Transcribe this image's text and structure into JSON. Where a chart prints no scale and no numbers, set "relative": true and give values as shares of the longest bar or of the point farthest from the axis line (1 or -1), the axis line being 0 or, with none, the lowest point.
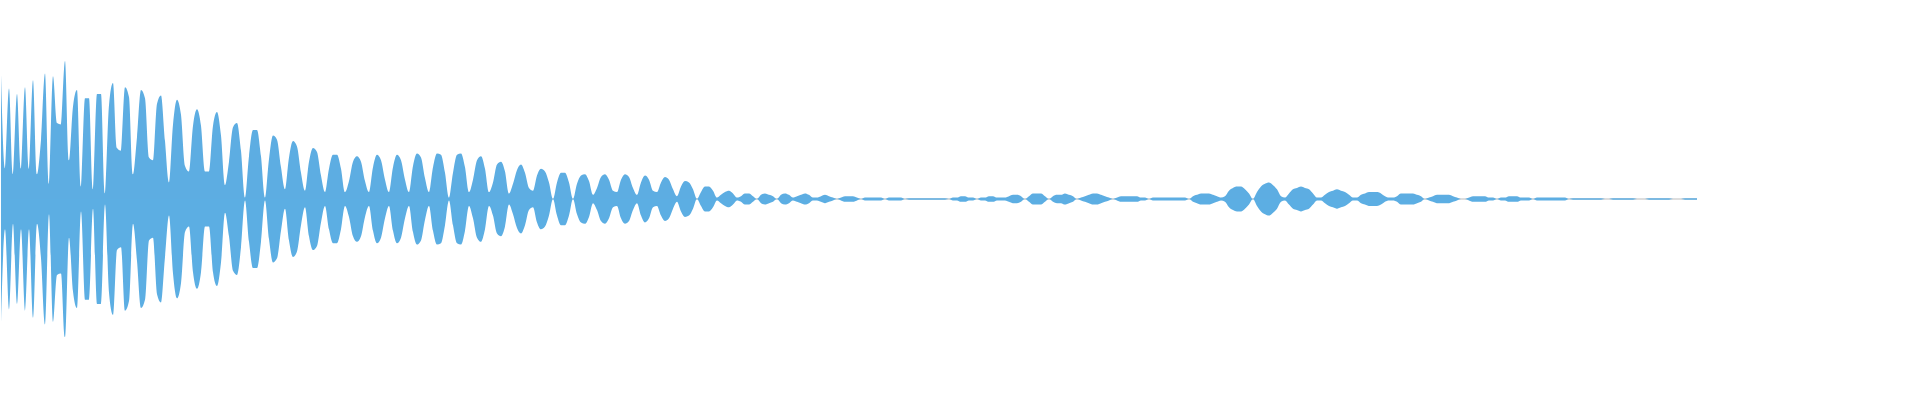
{
  "chart_data": {
    "type": "area",
    "relative": true,
    "categories": [
      null,
      null,
      null,
      null,
      null,
      null,
      null,
      null,
      null,
      null,
      null,
      null,
      null,
      null,
      null,
      null,
      null,
      null,
      null,
      null,
      null,
      null,
      null,
      null,
      null,
      null,
      null,
      null,
      null,
      null,
      null,
      null,
      null,
      null,
      null,
      null,
      null,
      null,
      null,
      null,
      null,
      null,
      null,
      null,
      null,
      null,
      null,
      null,
      null,
      null,
      null,
      null,
      null,
      null,
      null,
      null,
      null,
      null,
      null,
      null,
      null,
      null,
      null,
      null,
      null,
      null,
      null,
      null,
      null,
      null,
      null,
      null,
      null,
      null,
      null,
      null,
      null,
      null,
      null,
      null,
      null,
      null,
      null,
      null,
      null,
      null,
      null,
      null,
      null,
      null,
      null,
      null,
      null,
      null,
      null,
      null,
      null,
      null,
      null,
      null,
      null,
      null,
      null,
      null,
      null,
      null,
      null,
      null,
      null,
      null,
      null,
      null,
      null,
      null,
      null,
      null,
      null,
      null,
      null,
      null,
      null,
      null,
      null,
      null,
      null,
      null,
      null,
      null,
      null,
      null,
      null,
      null,
      null,
      null,
      null,
      null,
      null,
      null,
      null,
      null,
      null,
      null,
      null,
      null,
      null,
      null,
      null,
      null,
      null,
      null,
      null,
      null,
      null,
      null,
      null,
      null,
      null,
      null,
      null,
      null,
      null,
      null,
      null,
      null,
      null,
      null,
      null,
      null,
      null,
      null,
      null,
      null,
      null,
      null,
      null,
      null,
      null,
      null,
      null,
      null,
      null,
      null,
      null,
      null,
      null,
      null,
      null,
      null,
      null,
      null,
      null,
      null,
      null,
      null,
      null,
      null,
      null,
      null,
      null,
      null,
      null,
      null,
      null,
      null,
      null,
      null,
      null,
      null,
      null,
      null,
      null,
      null,
      null,
      null,
      null,
      null,
      null,
      null,
      null,
      null,
      null,
      null,
      null,
      null,
      null,
      null,
      null,
      null,
      null,
      null,
      null,
      null,
      null,
      null,
      null,
      null,
      null,
      null,
      null,
      null,
      null,
      null,
      null,
      null,
      null,
      null,
      null,
      null,
      null,
      null,
      null,
      null,
      null,
      null,
      null,
      null,
      null,
      null,
      null,
      null,
      null,
      null,
      null,
      null,
      null,
      null,
      null,
      null,
      null,
      null,
      null,
      null,
      null,
      null,
      null,
      null,
      null,
      null,
      null,
      null,
      null,
      null,
      null,
      null,
      null,
      null,
      null,
      null,
      null,
      null,
      null,
      null,
      null,
      null,
      null,
      null,
      null,
      null,
      null,
      null,
      null,
      null,
      null,
      null,
      null,
      null,
      null,
      null,
      null,
      null,
      null,
      null,
      null,
      null,
      null,
      null,
      null,
      null,
      null,
      null,
      null,
      null,
      null,
      null,
      null,
      null,
      null,
      null,
      null,
      null,
      null,
      null,
      null,
      null,
      null,
      null,
      null,
      null,
      null,
      null,
      null,
      null,
      null,
      null,
      null,
      null,
      null,
      null,
      null,
      null,
      null,
      null,
      null,
      null,
      null,
      null,
      null,
      null,
      null,
      null,
      null,
      null,
      null,
      null,
      null,
      null,
      null,
      null,
      null,
      null,
      null,
      null,
      null,
      null,
      null,
      null,
      null,
      null,
      null,
      null,
      null,
      null,
      null,
      null,
      null,
      null,
      null,
      null,
      null,
      null,
      null,
      null,
      null,
      null,
      null,
      null,
      null,
      null,
      null,
      null,
      null,
      null,
      null,
      null,
      null,
      null,
      null,
      null,
      null,
      null,
      null,
      null,
      null,
      null,
      null,
      null,
      null,
      null,
      null,
      null,
      null,
      null,
      null,
      null,
      null
    ],
    "series": [
      {
        "color": "#5dade2",
        "values": [
          0.9,
          0.22,
          0.8,
          0.18,
          0.76,
          0.22,
          0.81,
          0.22,
          0.86,
          0.18,
          0.43,
          0.91,
          0.11,
          0.89,
          0.55,
          0.54,
          1.0,
          0.28,
          0.67,
          0.79,
          0.09,
          0.73,
          0.73,
          0.07,
          0.76,
          0.76,
          0.04,
          0.68,
          0.84,
          0.37,
          0.35,
          0.81,
          0.74,
          0.18,
          0.45,
          0.79,
          0.73,
          0.3,
          0.28,
          0.69,
          0.75,
          0.42,
          0.12,
          0.54,
          0.72,
          0.61,
          0.24,
          0.2,
          0.53,
          0.65,
          0.53,
          0.2,
          0.2,
          0.53,
          0.63,
          0.46,
          0.1,
          0.27,
          0.52,
          0.55,
          0.35,
          0.01,
          0.31,
          0.5,
          0.5,
          0.31,
          0.01,
          0.29,
          0.46,
          0.43,
          0.23,
          0.07,
          0.3,
          0.42,
          0.38,
          0.19,
          0.06,
          0.27,
          0.37,
          0.34,
          0.17,
          0.05,
          0.22,
          0.32,
          0.32,
          0.22,
          0.05,
          0.13,
          0.27,
          0.31,
          0.27,
          0.13,
          0.05,
          0.23,
          0.32,
          0.28,
          0.14,
          0.05,
          0.23,
          0.32,
          0.28,
          0.14,
          0.05,
          0.24,
          0.33,
          0.3,
          0.15,
          0.05,
          0.23,
          0.33,
          0.32,
          0.19,
          0.01,
          0.19,
          0.32,
          0.33,
          0.23,
          0.05,
          0.14,
          0.28,
          0.31,
          0.22,
          0.05,
          0.12,
          0.25,
          0.27,
          0.2,
          0.04,
          0.11,
          0.21,
          0.25,
          0.19,
          0.08,
          0.06,
          0.17,
          0.22,
          0.2,
          0.12,
          0,
          0.12,
          0.19,
          0.19,
          0.12,
          0,
          0.11,
          0.17,
          0.18,
          0.13,
          0.03,
          0.08,
          0.16,
          0.18,
          0.14,
          0.06,
          0.05,
          0.14,
          0.18,
          0.16,
          0.08,
          0.03,
          0.12,
          0.17,
          0.14,
          0.06,
          0.05,
          0.12,
          0.16,
          0.14,
          0.07,
          0.02,
          0.09,
          0.13,
          0.12,
          0.07,
          0,
          0.05,
          0.09,
          0.09,
          0.06,
          0.01,
          0.03,
          0.05,
          0.06,
          0.04,
          0.01,
          0.02,
          0.04,
          0.04,
          0.02,
          0,
          0.03,
          0.04,
          0.03,
          0.02,
          0,
          0.03,
          0.04,
          0.03,
          0.01,
          0.02,
          0.03,
          0.04,
          0.03,
          0.01,
          0.01,
          0.02,
          0.03,
          0.02,
          0.01,
          0,
          0.01,
          0.02,
          0.02,
          0.02,
          0.01,
          0,
          0.01,
          0.01,
          0.01,
          0.01,
          0.01,
          0,
          0.01,
          0.01,
          0.01,
          0.01,
          0,
          0.005,
          0.005,
          0.005,
          0.005,
          0.005,
          0.005,
          0.005,
          0.005,
          0.005,
          0.005,
          0,
          0.01,
          0.01,
          0.02,
          0.02,
          0.01,
          0.01,
          0,
          0.01,
          0.01,
          0.02,
          0.02,
          0.01,
          0.01,
          0.01,
          0.02,
          0.03,
          0.03,
          0.02,
          0,
          0.02,
          0.04,
          0.04,
          0.04,
          0.02,
          0,
          0.02,
          0.03,
          0.03,
          0.04,
          0.03,
          0.02,
          0,
          0.01,
          0.02,
          0.03,
          0.04,
          0.04,
          0.03,
          0.02,
          0.01,
          0,
          0.01,
          0.02,
          0.02,
          0.02,
          0.02,
          0.02,
          0.01,
          0.01,
          0,
          0.01,
          0.01,
          0.01,
          0.01,
          0.01,
          0.01,
          0.01,
          0.01,
          0.01,
          0,
          0.02,
          0.03,
          0.04,
          0.04,
          0.04,
          0.03,
          0.02,
          0.01,
          0.02,
          0.06,
          0.08,
          0.09,
          0.09,
          0.07,
          0.04,
          0,
          0.05,
          0.09,
          0.11,
          0.12,
          0.1,
          0.07,
          0.02,
          0.01,
          0.04,
          0.07,
          0.08,
          0.09,
          0.08,
          0.07,
          0.04,
          0.01,
          0.01,
          0.03,
          0.05,
          0.06,
          0.07,
          0.06,
          0.05,
          0.03,
          0.01,
          0.01,
          0.03,
          0.04,
          0.05,
          0.05,
          0.05,
          0.04,
          0.02,
          0.01,
          0.01,
          0.02,
          0.04,
          0.04,
          0.04,
          0.04,
          0.03,
          0.02,
          0,
          0.01,
          0.02,
          0.03,
          0.03,
          0.03,
          0.03,
          0.02,
          0.01,
          0,
          0,
          0.01,
          0.02,
          0.02,
          0.02,
          0.02,
          0.01,
          0.01,
          0,
          0.01,
          0.01,
          0.02,
          0.02,
          0.02,
          0.01,
          0.01,
          0.01,
          0,
          0.01,
          0.01,
          0.01,
          0.01,
          0.01,
          0.01,
          0.01,
          0.01,
          0,
          0.005,
          0.005,
          0.005,
          0.005,
          0.005,
          0.005,
          0.005,
          0.005,
          0,
          0,
          0.005,
          0.005,
          0.005,
          0.005,
          0.005,
          0.005,
          0,
          0,
          0,
          0.005,
          0.005,
          0.005,
          0.005,
          0.005,
          0.005,
          0,
          0,
          0,
          0.005,
          0.005,
          0.005,
          0.005
        ]
      },
      {
        "color": "#5caee3",
        "values": [
          -0.9,
          -0.22,
          -0.8,
          -0.18,
          -0.76,
          -0.22,
          -0.81,
          -0.22,
          -0.86,
          -0.18,
          -0.43,
          -0.91,
          -0.11,
          -0.89,
          -0.55,
          -0.54,
          -1.0,
          -0.28,
          -0.67,
          -0.79,
          -0.09,
          -0.73,
          -0.73,
          -0.07,
          -0.76,
          -0.76,
          -0.04,
          -0.68,
          -0.84,
          -0.37,
          -0.35,
          -0.81,
          -0.74,
          -0.18,
          -0.45,
          -0.79,
          -0.73,
          -0.3,
          -0.28,
          -0.69,
          -0.75,
          -0.42,
          -0.12,
          -0.54,
          -0.72,
          -0.61,
          -0.24,
          -0.2,
          -0.53,
          -0.65,
          -0.53,
          -0.2,
          -0.2,
          -0.53,
          -0.63,
          -0.46,
          -0.1,
          -0.27,
          -0.52,
          -0.55,
          -0.35,
          -0.01,
          -0.31,
          -0.5,
          -0.5,
          -0.31,
          -0.01,
          -0.29,
          -0.46,
          -0.43,
          -0.23,
          -0.07,
          -0.3,
          -0.42,
          -0.38,
          -0.19,
          -0.06,
          -0.27,
          -0.37,
          -0.34,
          -0.17,
          -0.05,
          -0.22,
          -0.32,
          -0.32,
          -0.22,
          -0.05,
          -0.13,
          -0.27,
          -0.31,
          -0.27,
          -0.13,
          -0.05,
          -0.23,
          -0.32,
          -0.28,
          -0.14,
          -0.05,
          -0.23,
          -0.32,
          -0.28,
          -0.14,
          -0.05,
          -0.24,
          -0.33,
          -0.3,
          -0.15,
          -0.05,
          -0.23,
          -0.33,
          -0.32,
          -0.19,
          -0.01,
          -0.19,
          -0.32,
          -0.33,
          -0.23,
          -0.05,
          -0.14,
          -0.28,
          -0.31,
          -0.22,
          -0.05,
          -0.12,
          -0.25,
          -0.27,
          -0.2,
          -0.04,
          -0.11,
          -0.21,
          -0.25,
          -0.19,
          -0.08,
          -0.06,
          -0.17,
          -0.22,
          -0.2,
          -0.12,
          0,
          -0.12,
          -0.19,
          -0.19,
          -0.12,
          0,
          -0.11,
          -0.17,
          -0.18,
          -0.13,
          -0.03,
          -0.08,
          -0.16,
          -0.18,
          -0.14,
          -0.06,
          -0.05,
          -0.14,
          -0.18,
          -0.16,
          -0.08,
          -0.03,
          -0.12,
          -0.17,
          -0.14,
          -0.06,
          -0.05,
          -0.12,
          -0.16,
          -0.14,
          -0.07,
          -0.02,
          -0.09,
          -0.13,
          -0.12,
          -0.07,
          0,
          -0.05,
          -0.09,
          -0.09,
          -0.06,
          -0.01,
          -0.03,
          -0.05,
          -0.06,
          -0.04,
          -0.01,
          -0.02,
          -0.04,
          -0.04,
          -0.02,
          0,
          -0.03,
          -0.04,
          -0.03,
          -0.02,
          0,
          -0.03,
          -0.04,
          -0.03,
          -0.01,
          -0.02,
          -0.03,
          -0.04,
          -0.03,
          -0.01,
          -0.01,
          -0.02,
          -0.03,
          -0.02,
          -0.01,
          0,
          -0.01,
          -0.02,
          -0.02,
          -0.02,
          -0.01,
          0,
          -0.01,
          -0.01,
          -0.01,
          -0.01,
          -0.01,
          0,
          -0.01,
          -0.01,
          -0.01,
          -0.01,
          0,
          -0.005,
          -0.005,
          -0.005,
          -0.005,
          -0.005,
          -0.005,
          -0.005,
          -0.005,
          -0.005,
          -0.005,
          0,
          -0.01,
          -0.01,
          -0.02,
          -0.02,
          -0.01,
          -0.01,
          0,
          -0.01,
          -0.01,
          -0.02,
          -0.02,
          -0.01,
          -0.01,
          -0.01,
          -0.02,
          -0.03,
          -0.03,
          -0.02,
          0,
          -0.02,
          -0.04,
          -0.04,
          -0.04,
          -0.02,
          0,
          -0.02,
          -0.03,
          -0.03,
          -0.04,
          -0.03,
          -0.02,
          0,
          -0.01,
          -0.02,
          -0.03,
          -0.04,
          -0.04,
          -0.03,
          -0.02,
          -0.01,
          0,
          -0.01,
          -0.02,
          -0.02,
          -0.02,
          -0.02,
          -0.02,
          -0.01,
          -0.01,
          0,
          -0.01,
          -0.01,
          -0.01,
          -0.01,
          -0.01,
          -0.01,
          -0.01,
          -0.01,
          -0.01,
          0,
          -0.02,
          -0.03,
          -0.04,
          -0.04,
          -0.04,
          -0.03,
          -0.02,
          -0.01,
          -0.02,
          -0.06,
          -0.08,
          -0.09,
          -0.09,
          -0.07,
          -0.04,
          0,
          -0.05,
          -0.09,
          -0.11,
          -0.12,
          -0.1,
          -0.07,
          -0.02,
          -0.01,
          -0.04,
          -0.07,
          -0.08,
          -0.09,
          -0.08,
          -0.07,
          -0.04,
          -0.01,
          -0.01,
          -0.03,
          -0.05,
          -0.06,
          -0.07,
          -0.06,
          -0.05,
          -0.03,
          -0.01,
          -0.01,
          -0.03,
          -0.04,
          -0.05,
          -0.05,
          -0.05,
          -0.04,
          -0.02,
          -0.01,
          -0.01,
          -0.02,
          -0.04,
          -0.04,
          -0.04,
          -0.04,
          -0.03,
          -0.02,
          0,
          -0.01,
          -0.02,
          -0.03,
          -0.03,
          -0.03,
          -0.03,
          -0.02,
          -0.01,
          0,
          0,
          -0.01,
          -0.02,
          -0.02,
          -0.02,
          -0.02,
          -0.01,
          -0.01,
          0,
          -0.01,
          -0.01,
          -0.02,
          -0.02,
          -0.02,
          -0.01,
          -0.01,
          -0.01,
          0,
          -0.01,
          -0.01,
          -0.01,
          -0.01,
          -0.01,
          -0.01,
          -0.01,
          -0.01,
          0,
          -0.005,
          -0.005,
          -0.005,
          -0.005,
          -0.005,
          -0.005,
          -0.005,
          -0.005,
          0,
          0,
          -0.005,
          -0.005,
          -0.005,
          -0.005,
          -0.005,
          -0.005,
          0,
          0,
          0,
          -0.005,
          -0.005,
          -0.005,
          -0.005,
          -0.005,
          -0.005,
          0,
          0,
          0,
          -0.005,
          -0.005,
          -0.005,
          -0.005
        ]
      }
    ]
  }
}
